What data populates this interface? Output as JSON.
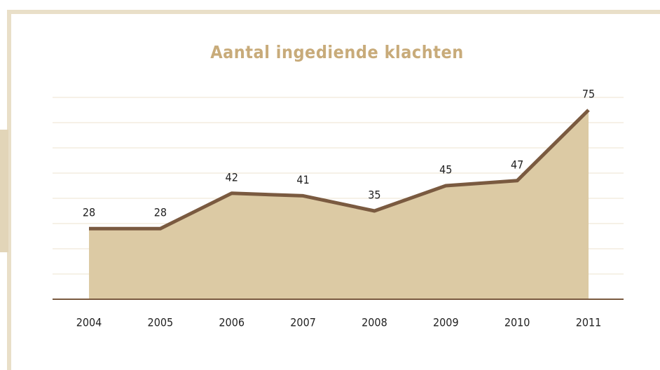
{
  "chart_data": {
    "type": "area",
    "title": "Aantal ingediende klachten",
    "categories": [
      "2004",
      "2005",
      "2006",
      "2007",
      "2008",
      "2009",
      "2010",
      "2011"
    ],
    "values": [
      28,
      28,
      42,
      41,
      35,
      45,
      47,
      75
    ],
    "color": "#7a5a40",
    "fill": "#dccaa4",
    "ylim": [
      0,
      80
    ],
    "yticks": [
      0,
      10,
      20,
      30,
      40,
      50,
      60,
      70,
      80
    ],
    "grid": true
  }
}
